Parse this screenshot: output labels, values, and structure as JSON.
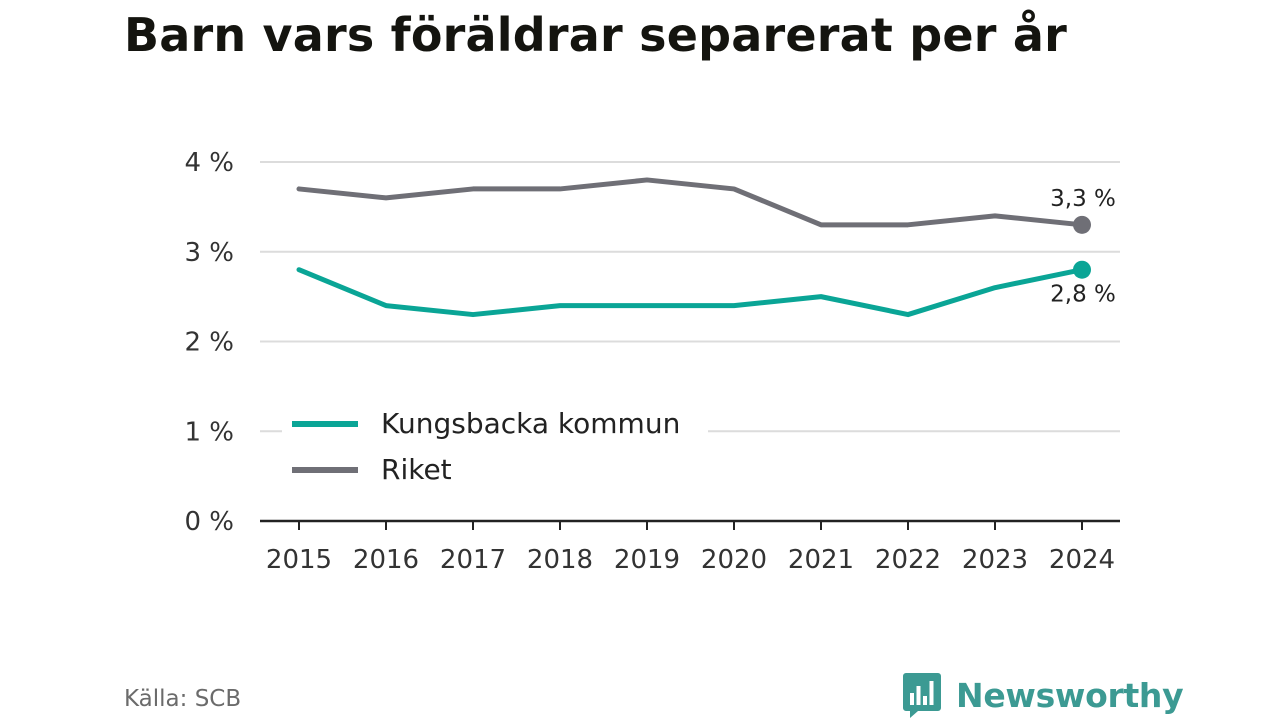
{
  "title": "Barn vars föräldrar separerat per år",
  "source": "Källa: SCB",
  "brand": "Newsworthy",
  "colors": {
    "kungsbacka": "#0aa596",
    "riket": "#6f6f76",
    "grid": "#dcdcdc",
    "axis": "#222222"
  },
  "chart_data": {
    "type": "line",
    "x": [
      "2015",
      "2016",
      "2017",
      "2018",
      "2019",
      "2020",
      "2021",
      "2022",
      "2023",
      "2024"
    ],
    "series": [
      {
        "name": "Kungsbacka kommun",
        "values": [
          2.8,
          2.4,
          2.3,
          2.4,
          2.4,
          2.4,
          2.5,
          2.3,
          2.6,
          2.8
        ],
        "end_label": "2,8 %",
        "color": "#0aa596"
      },
      {
        "name": "Riket",
        "values": [
          3.7,
          3.6,
          3.7,
          3.7,
          3.8,
          3.7,
          3.3,
          3.3,
          3.4,
          3.3
        ],
        "end_label": "3,3 %",
        "color": "#6f6f76"
      }
    ],
    "yticks": [
      0,
      1,
      2,
      3,
      4
    ],
    "ytick_labels": [
      "0 %",
      "1 %",
      "2 %",
      "3 %",
      "4 %"
    ],
    "ylim": [
      0,
      4
    ],
    "grid": true,
    "legend": "bottom-left inside plot"
  }
}
